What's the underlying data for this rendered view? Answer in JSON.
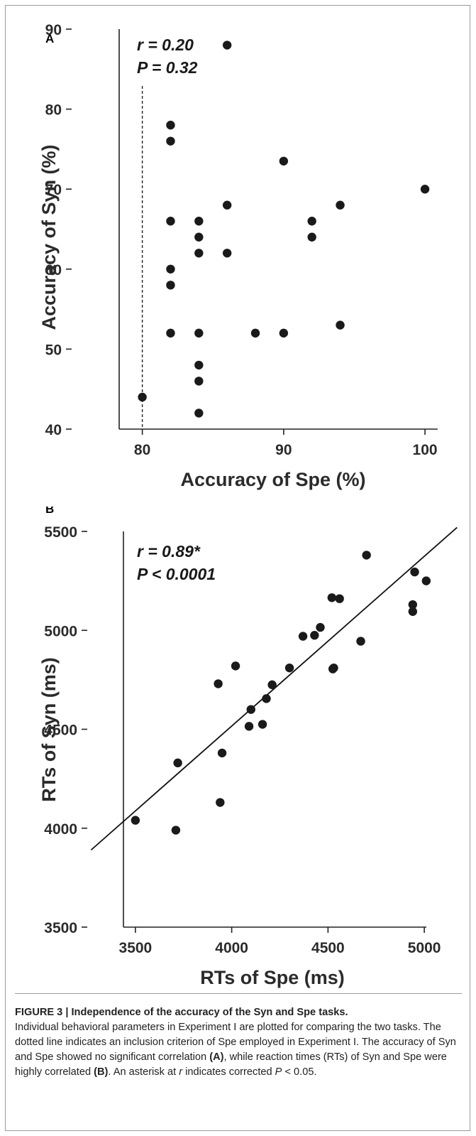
{
  "chart_data": [
    {
      "panel": "A",
      "type": "scatter",
      "xlabel": "Accuracy of Spe (%)",
      "ylabel": "Accuracy of Syn (%)",
      "xlim": [
        75,
        101
      ],
      "ylim": [
        40,
        90
      ],
      "xticks": [
        80,
        90,
        100
      ],
      "yticks": [
        40,
        50,
        60,
        70,
        80,
        90
      ],
      "annotation_r": "r = 0.20",
      "annotation_p": "P = 0.32",
      "threshold_line_x": 80,
      "threshold_style": "dashed",
      "grid": false,
      "points": [
        [
          80,
          44
        ],
        [
          82,
          78
        ],
        [
          82,
          76
        ],
        [
          82,
          66
        ],
        [
          82,
          60
        ],
        [
          82,
          58
        ],
        [
          82,
          52
        ],
        [
          84,
          66
        ],
        [
          84,
          64
        ],
        [
          84,
          62
        ],
        [
          84,
          52
        ],
        [
          84,
          48
        ],
        [
          84,
          46
        ],
        [
          84,
          42
        ],
        [
          86,
          88
        ],
        [
          86,
          68
        ],
        [
          86,
          62
        ],
        [
          88,
          52
        ],
        [
          90,
          73.5
        ],
        [
          90,
          52
        ],
        [
          92,
          66
        ],
        [
          92,
          64
        ],
        [
          94,
          68
        ],
        [
          94,
          53
        ],
        [
          100,
          70
        ]
      ]
    },
    {
      "panel": "B",
      "type": "scatter",
      "xlabel": "RTs of Spe (ms)",
      "ylabel": "RTs of Syn (ms)",
      "xlim": [
        3250,
        5250
      ],
      "ylim": [
        3500,
        5500
      ],
      "xticks": [
        3500,
        4000,
        4500,
        5000
      ],
      "yticks": [
        3500,
        4000,
        4500,
        5000,
        5500
      ],
      "annotation_r": "r = 0.89*",
      "annotation_p": "P < 0.0001",
      "grid": false,
      "regression_line": [
        [
          3270,
          3890
        ],
        [
          5170,
          5520
        ]
      ],
      "points": [
        [
          3500,
          4040
        ],
        [
          3710,
          3990
        ],
        [
          3720,
          4330
        ],
        [
          3930,
          4730
        ],
        [
          3940,
          4130
        ],
        [
          3950,
          4380
        ],
        [
          4020,
          4820
        ],
        [
          4090,
          4515
        ],
        [
          4100,
          4600
        ],
        [
          4160,
          4525
        ],
        [
          4180,
          4655
        ],
        [
          4210,
          4725
        ],
        [
          4300,
          4810
        ],
        [
          4370,
          4970
        ],
        [
          4430,
          4975
        ],
        [
          4460,
          5015
        ],
        [
          4520,
          5165
        ],
        [
          4525,
          4805
        ],
        [
          4530,
          4810
        ],
        [
          4560,
          5160
        ],
        [
          4670,
          4945
        ],
        [
          4700,
          5380
        ],
        [
          4940,
          5095
        ],
        [
          4940,
          5130
        ],
        [
          4950,
          5295
        ],
        [
          5010,
          5250
        ]
      ]
    }
  ],
  "caption": {
    "title": "FIGURE 3 | Independence of the accuracy of the Syn and Spe tasks.",
    "body_1": "Individual behavioral parameters in Experiment I are plotted for comparing the two tasks. The dotted line indicates an inclusion criterion of Spe employed in Experiment I. The accuracy of Syn and Spe showed no significant correlation ",
    "ref_a": "(A)",
    "body_2": ", while reaction times (RTs) of Syn and Spe were highly correlated ",
    "ref_b": "(B)",
    "body_3": ". An asterisk at ",
    "r_symbol": "r",
    "body_4": " indicates corrected ",
    "p_symbol": "P",
    "body_5": " < 0.05."
  }
}
